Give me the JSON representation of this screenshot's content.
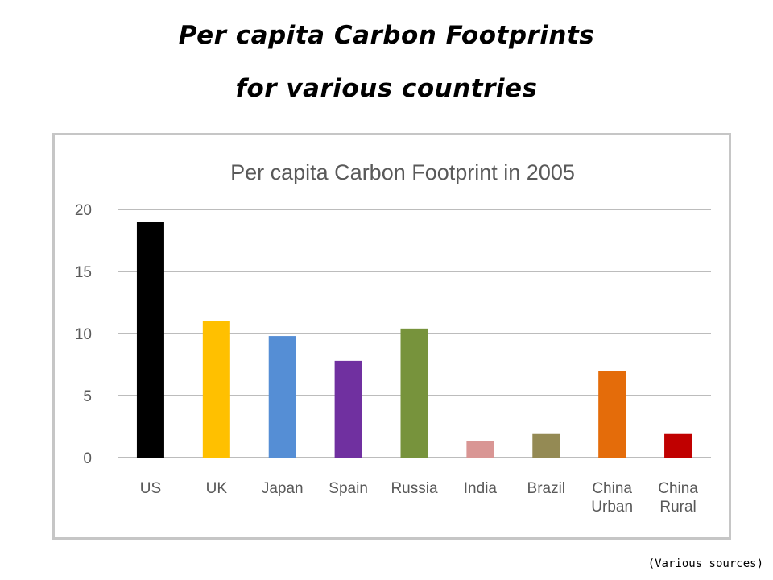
{
  "slide": {
    "title_line1": "Per capita Carbon Footprints",
    "title_line2": "for various countries",
    "source_note": "(Various sources)"
  },
  "chart_data": {
    "type": "bar",
    "title": "Per capita Carbon Footprint in 2005",
    "categories": [
      [
        "US"
      ],
      [
        "UK"
      ],
      [
        "Japan"
      ],
      [
        "Spain"
      ],
      [
        "Russia"
      ],
      [
        "India"
      ],
      [
        "Brazil"
      ],
      [
        "China",
        "Urban"
      ],
      [
        "China",
        "Rural"
      ]
    ],
    "values": [
      19,
      11,
      9.8,
      7.8,
      10.4,
      1.3,
      1.9,
      7.0,
      1.9
    ],
    "colors": [
      "#000000",
      "#ffc000",
      "#558ed5",
      "#7030a0",
      "#77933c",
      "#d99694",
      "#948a54",
      "#e46c0a",
      "#c00000"
    ],
    "ylim": [
      0,
      20
    ],
    "yticks": [
      0,
      5,
      10,
      15,
      20
    ],
    "grid": true,
    "legend": "none",
    "xlabel": "",
    "ylabel": ""
  }
}
